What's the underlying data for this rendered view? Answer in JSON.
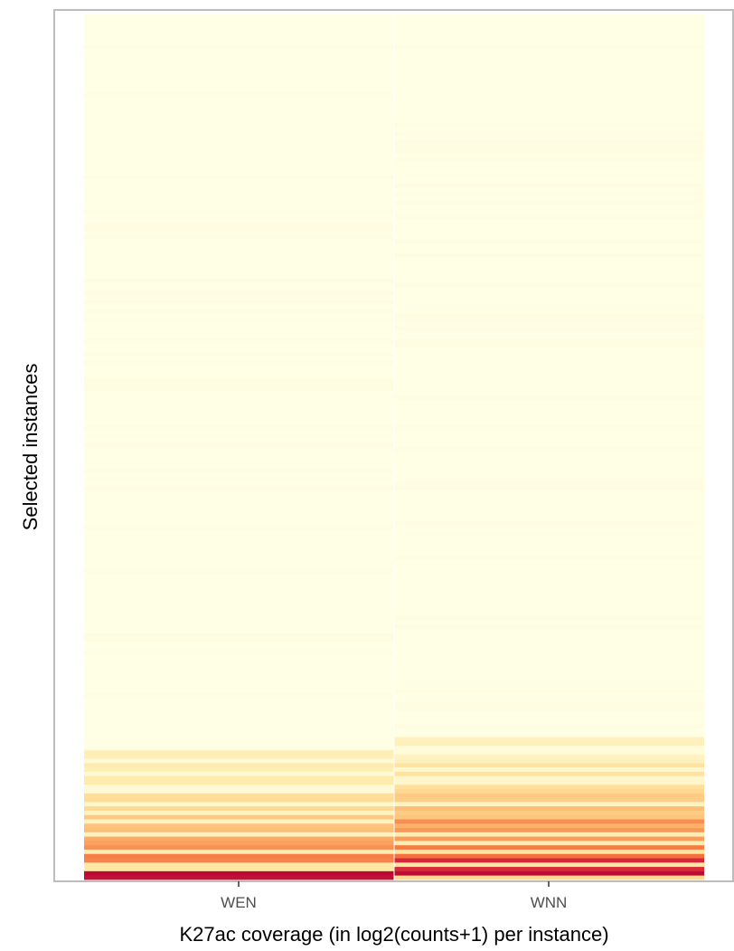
{
  "chart_data": {
    "type": "heatmap",
    "title": "",
    "xlabel": "K27ac coverage (in log2(counts+1) per instance)",
    "ylabel": "Selected instances",
    "categories": [
      "WEN",
      "WNN"
    ],
    "grid": false,
    "legend": "none",
    "colors": {
      "panel_border": "#bdbdbd",
      "background": "#ffffff",
      "low": "#ffffe6",
      "mid_low": "#fee8a3",
      "mid": "#fdb36b",
      "mid_high": "#f4733f",
      "high": "#d2203a",
      "max": "#b10032"
    },
    "n_instances": 200,
    "columns": [
      {
        "name": "WEN",
        "signal_onset_fraction": 0.15,
        "bands": [
          {
            "from": 0.0,
            "to": 0.01,
            "level": 0.95
          },
          {
            "from": 0.01,
            "to": 0.03,
            "level": 0.7
          },
          {
            "from": 0.03,
            "to": 0.05,
            "level": 0.55
          },
          {
            "from": 0.05,
            "to": 0.08,
            "level": 0.4
          },
          {
            "from": 0.08,
            "to": 0.1,
            "level": 0.3
          },
          {
            "from": 0.1,
            "to": 0.15,
            "level": 0.18
          }
        ]
      },
      {
        "name": "WNN",
        "signal_onset_fraction": 0.165,
        "bands": [
          {
            "from": 0.0,
            "to": 0.015,
            "level": 0.95
          },
          {
            "from": 0.015,
            "to": 0.04,
            "level": 0.75
          },
          {
            "from": 0.04,
            "to": 0.07,
            "level": 0.55
          },
          {
            "from": 0.07,
            "to": 0.1,
            "level": 0.4
          },
          {
            "from": 0.1,
            "to": 0.135,
            "level": 0.28
          },
          {
            "from": 0.135,
            "to": 0.165,
            "level": 0.15
          }
        ]
      }
    ]
  }
}
